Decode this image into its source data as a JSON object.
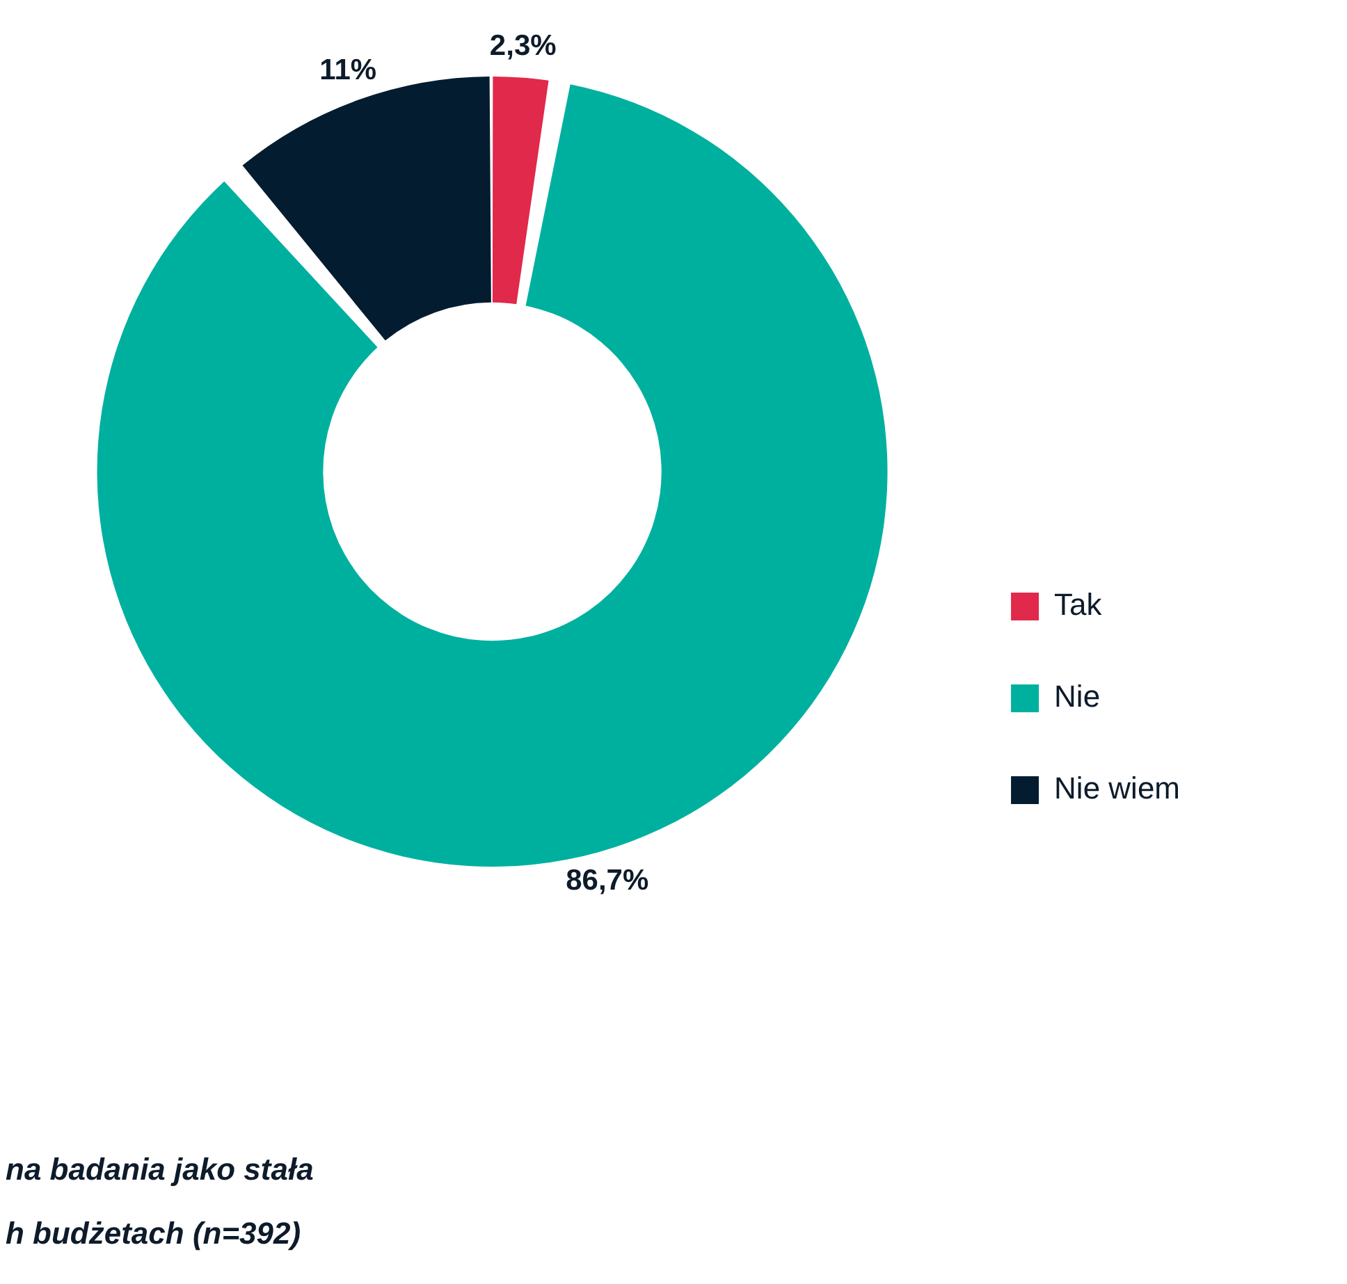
{
  "chart_data": {
    "type": "donut",
    "categories": [
      "Tak",
      "Nie",
      "Nie wiem"
    ],
    "values": [
      2.3,
      86.7,
      11
    ],
    "colors": [
      "#e0294b",
      "#00b09f",
      "#041c30"
    ],
    "value_labels": [
      "2,3%",
      "86,7%",
      "11%"
    ],
    "legend": "bottom right",
    "annotations": [
      "na badania jako stała",
      "h budżetach (n=392)"
    ]
  }
}
